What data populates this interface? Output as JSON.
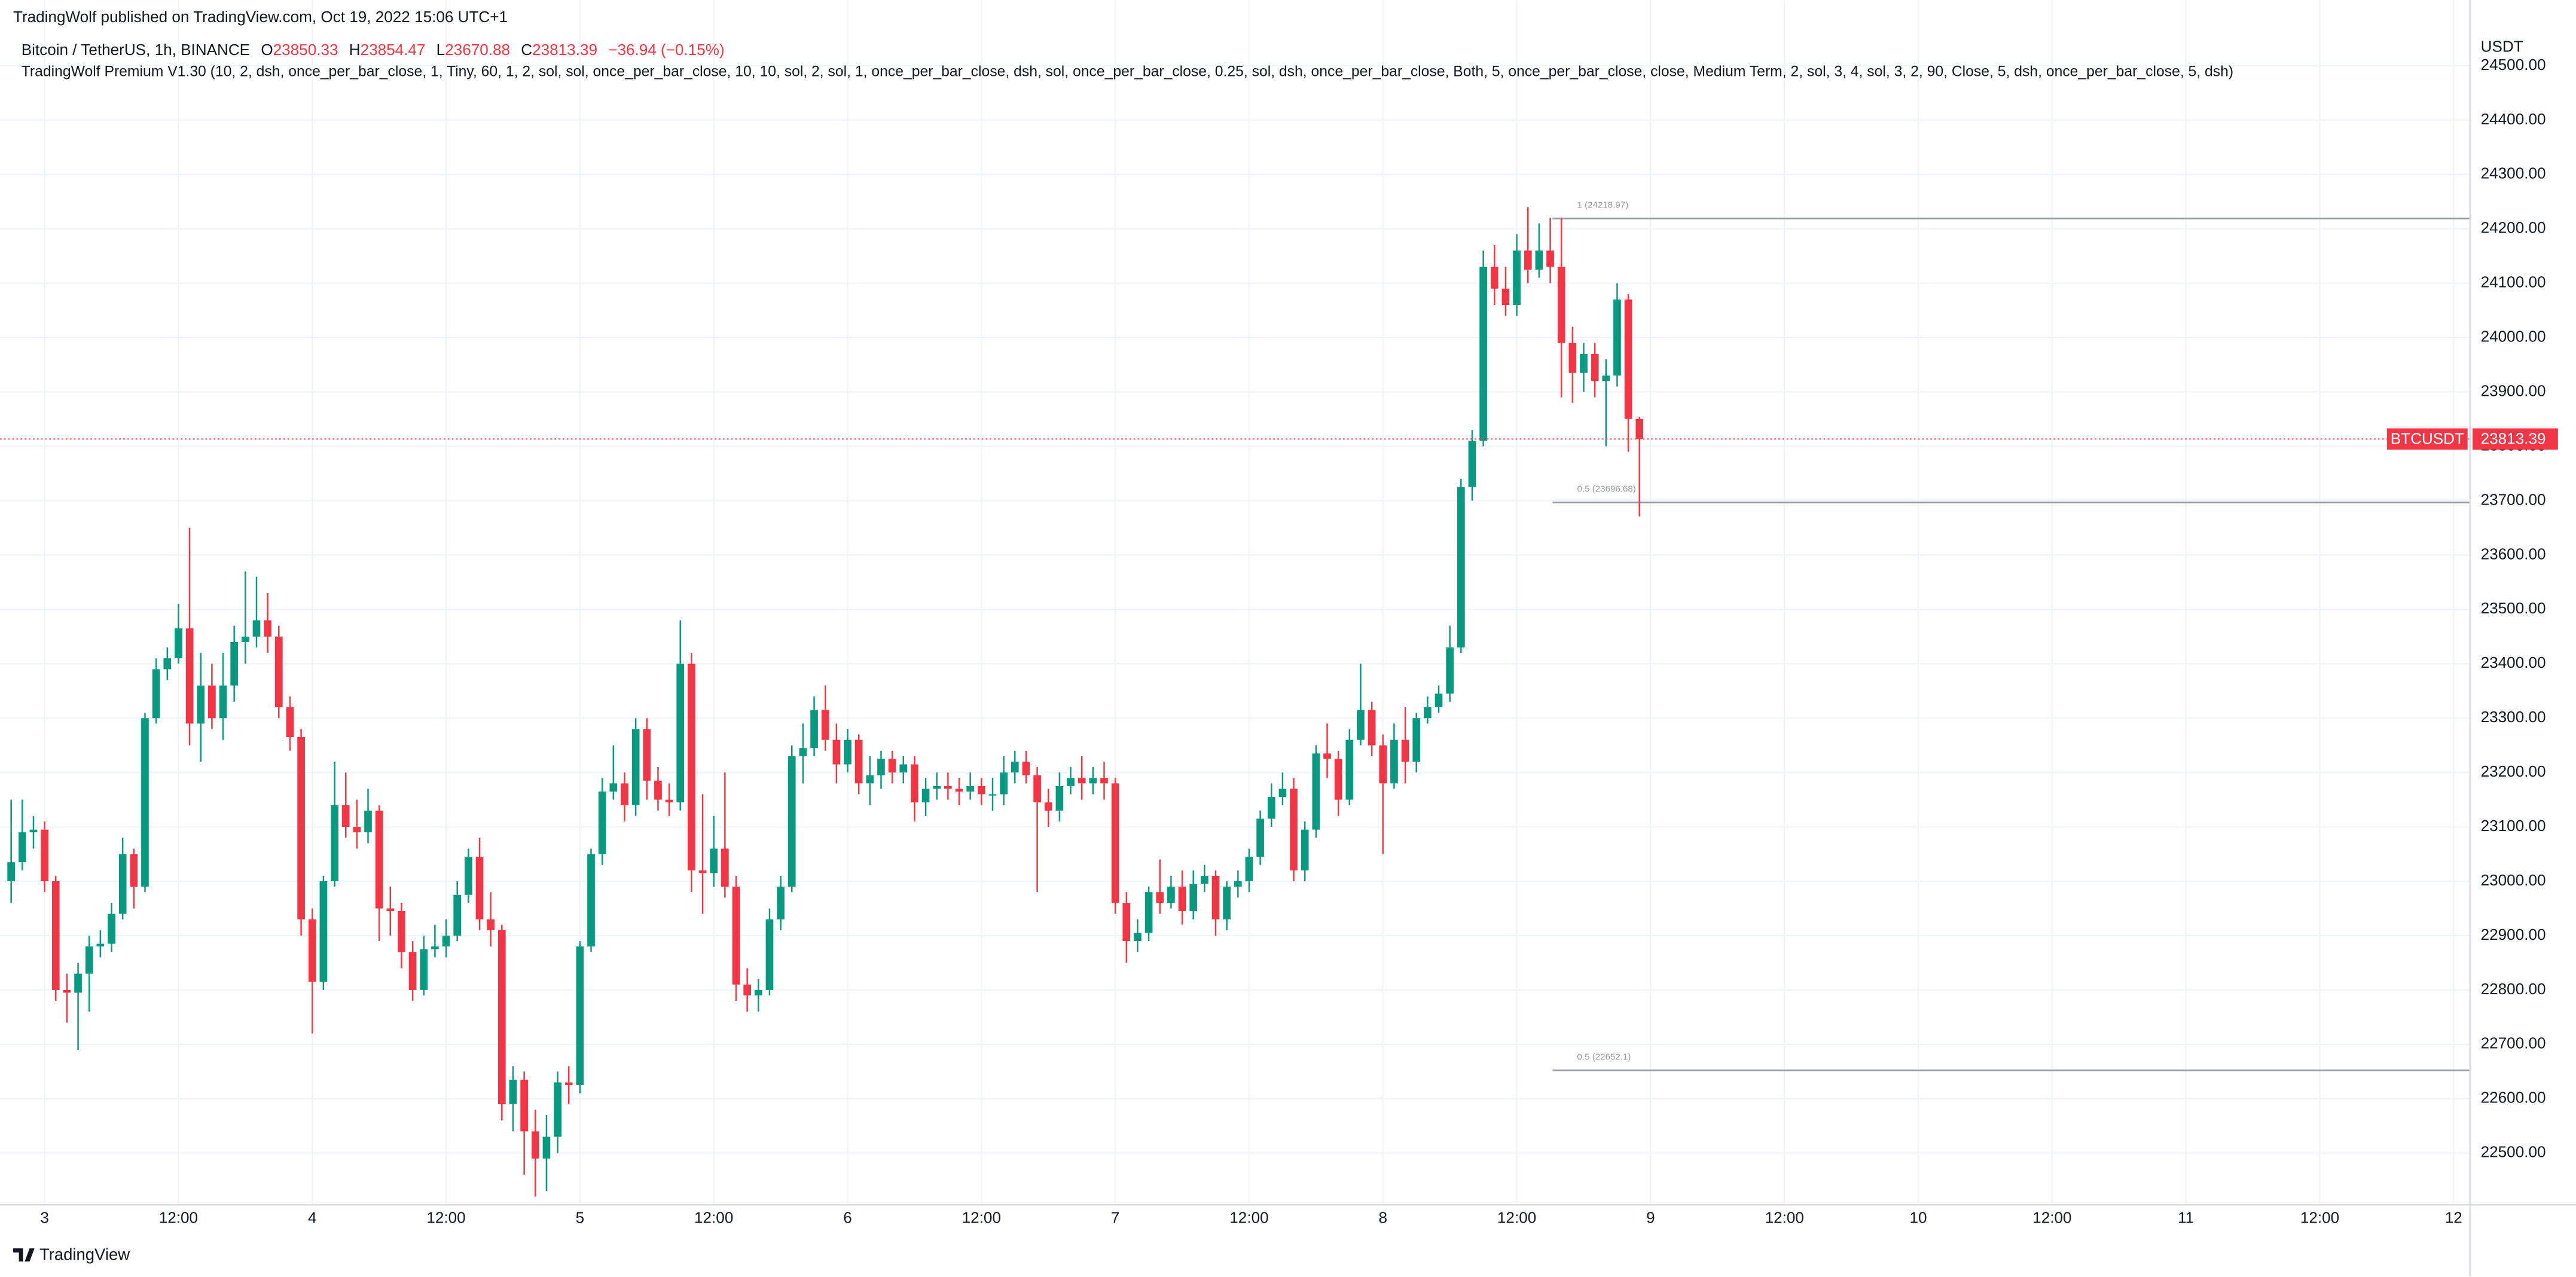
{
  "header": {
    "published": "TradingWolf published on TradingView.com, Oct 19, 2022 15:06 UTC+1",
    "logo": "TradingView"
  },
  "chart_data": {
    "type": "candlestick",
    "title": "Bitcoin / TetherUS, 1h, BINANCE",
    "ohlc_letters": [
      "O",
      "H",
      "L",
      "C"
    ],
    "change": "−36.94 (−0.15%)",
    "indicator": "TradingWolf Premium V1.30 (10, 2, dsh, once_per_bar_close, 1, Tiny, 60, 1, 2, sol, sol, once_per_bar_close, 10, 10, sol, 2, sol, 1, once_per_bar_close, dsh, sol, once_per_bar_close, 0.25, sol, dsh, once_per_bar_close, Both, 5, once_per_bar_close, close, Medium Term, 2, sol, 3, 4, sol, 3, 2, 90, Close, 5, dsh, once_per_bar_close, 5, dsh)",
    "currency": "USDT",
    "symbol": "BTCUSDT",
    "up_color": "#089981",
    "down_color": "#f23645",
    "grid": true,
    "x": [
      -3,
      -2,
      -1,
      0,
      1,
      2,
      3,
      4,
      5,
      6,
      7,
      8,
      9,
      10,
      11,
      12,
      13,
      14,
      15,
      16,
      17,
      18,
      19,
      20,
      21,
      22,
      23,
      24,
      25,
      26,
      27,
      28,
      29,
      30,
      31,
      32,
      33,
      34,
      35,
      36,
      37,
      38,
      39,
      40,
      41,
      42,
      43,
      44,
      45,
      46,
      47,
      48,
      49,
      50,
      51,
      52,
      53,
      54,
      55,
      56,
      57,
      58,
      59,
      60,
      61,
      62,
      63,
      64,
      65,
      66,
      67,
      68,
      69,
      70,
      71,
      72,
      73,
      74,
      75,
      76,
      77,
      78,
      79,
      80,
      81,
      82,
      83,
      84,
      85,
      86,
      87,
      88,
      89,
      90,
      91,
      92,
      93,
      94,
      95,
      96,
      97,
      98,
      99,
      100,
      101,
      102,
      103,
      104,
      105,
      106,
      107,
      108,
      109,
      110,
      111,
      112,
      113,
      114,
      115,
      116,
      117,
      118,
      119,
      120,
      121,
      122,
      123,
      124,
      125,
      126,
      127,
      128,
      129,
      130,
      131,
      132,
      133,
      134,
      135,
      136,
      137,
      138,
      139,
      140,
      141,
      142,
      143
    ],
    "open": [
      23000,
      23035,
      23090,
      23095,
      23000,
      22800,
      22795,
      22830,
      22880,
      22885,
      22940,
      23050,
      22990,
      23300,
      23390,
      23410,
      23465,
      23290,
      23360,
      23300,
      23360,
      23440,
      23450,
      23480,
      23450,
      23320,
      23265,
      22930,
      22815,
      23000,
      23140,
      23100,
      23090,
      23130,
      22950,
      22945,
      22870,
      22800,
      22875,
      22880,
      22900,
      22975,
      23045,
      22930,
      22910,
      22590,
      22635,
      22540,
      22490,
      22530,
      22630,
      22625,
      22880,
      23050,
      23165,
      23180,
      23140,
      23280,
      23185,
      23150,
      23145,
      23400,
      23020,
      23015,
      23060,
      22990,
      22810,
      22790,
      22800,
      22930,
      22990,
      23230,
      23245,
      23315,
      23260,
      23215,
      23260,
      23180,
      23195,
      23225,
      23200,
      23215,
      23145,
      23170,
      23175,
      23170,
      23165,
      23175,
      23160,
      23160,
      23200,
      23220,
      23195,
      23145,
      23130,
      23175,
      23190,
      23180,
      23190,
      23180,
      22960,
      22890,
      22905,
      22980,
      22960,
      22990,
      22945,
      22995,
      23010,
      22930,
      22990,
      23000,
      23045,
      23115,
      23155,
      23170,
      23020,
      23095,
      23235,
      23225,
      23150,
      23260,
      23315,
      23250,
      23180,
      23260,
      23220,
      23300,
      23320,
      23345,
      23430,
      23725,
      23810,
      24130,
      24090,
      24060,
      24160,
      24125,
      24160,
      24130,
      23990,
      23935,
      23970,
      23920,
      23930,
      24070,
      23850.33
    ],
    "high": [
      23150,
      23150,
      23120,
      23110,
      23010,
      22830,
      22850,
      22900,
      22910,
      22960,
      23080,
      23060,
      23310,
      23410,
      23430,
      23510,
      23650,
      23420,
      23400,
      23420,
      23470,
      23570,
      23560,
      23530,
      23470,
      23340,
      23280,
      22950,
      23010,
      23220,
      23200,
      23150,
      23170,
      23140,
      22990,
      22960,
      22890,
      22900,
      22920,
      22930,
      23000,
      23060,
      23080,
      22980,
      22920,
      22660,
      22650,
      22580,
      22570,
      22650,
      22660,
      22890,
      23060,
      23190,
      23250,
      23200,
      23300,
      23300,
      23210,
      23180,
      23480,
      23420,
      23160,
      23120,
      23200,
      23010,
      22840,
      22820,
      22950,
      23010,
      23250,
      23290,
      23340,
      23360,
      23290,
      23280,
      23270,
      23230,
      23240,
      23240,
      23230,
      23230,
      23190,
      23200,
      23200,
      23190,
      23200,
      23190,
      23190,
      23230,
      23240,
      23240,
      23210,
      23170,
      23200,
      23210,
      23230,
      23210,
      23220,
      23190,
      22980,
      22930,
      22990,
      23040,
      23010,
      23020,
      23020,
      23030,
      23020,
      23000,
      23020,
      23060,
      23130,
      23180,
      23200,
      23190,
      23110,
      23250,
      23290,
      23240,
      23280,
      23400,
      23330,
      23270,
      23290,
      23320,
      23310,
      23340,
      23360,
      23470,
      23740,
      23830,
      24160,
      24170,
      24130,
      24190,
      24240,
      24210,
      24220,
      24220,
      24020,
      23990,
      23990,
      23960,
      24100,
      24080,
      23854.47
    ],
    "low": [
      22960,
      23020,
      23060,
      22980,
      22780,
      22740,
      22690,
      22760,
      22860,
      22870,
      22930,
      22950,
      22980,
      23290,
      23370,
      23400,
      23250,
      23220,
      23280,
      23260,
      23330,
      23400,
      23430,
      23420,
      23300,
      23240,
      22900,
      22720,
      22800,
      22990,
      23080,
      23060,
      23070,
      22890,
      22900,
      22840,
      22780,
      22790,
      22860,
      22860,
      22890,
      22960,
      22910,
      22880,
      22560,
      22540,
      22460,
      22420,
      22430,
      22500,
      22590,
      22610,
      22870,
      23030,
      23150,
      23110,
      23120,
      23150,
      23130,
      23120,
      23130,
      22980,
      22940,
      22990,
      22970,
      22780,
      22760,
      22760,
      22790,
      22910,
      22980,
      23180,
      23230,
      23240,
      23180,
      23200,
      23160,
      23140,
      23170,
      23180,
      23180,
      23110,
      23120,
      23150,
      23150,
      23140,
      23150,
      23140,
      23130,
      23140,
      23180,
      23180,
      22980,
      23100,
      23110,
      23160,
      23150,
      23160,
      23150,
      22940,
      22850,
      22870,
      22890,
      22940,
      22950,
      22920,
      22930,
      22980,
      22900,
      22910,
      22970,
      22980,
      23030,
      23100,
      23140,
      23000,
      23000,
      23080,
      23190,
      23120,
      23140,
      23250,
      23230,
      23050,
      23170,
      23180,
      23200,
      23290,
      23310,
      23330,
      23420,
      23700,
      23800,
      24060,
      24040,
      24040,
      24100,
      24110,
      24100,
      23890,
      23880,
      23900,
      23890,
      23800,
      23910,
      23790,
      23670.88
    ],
    "close": [
      23035,
      23090,
      23095,
      23000,
      22800,
      22795,
      22830,
      22880,
      22885,
      22940,
      23050,
      22990,
      23300,
      23390,
      23410,
      23465,
      23290,
      23360,
      23300,
      23360,
      23440,
      23450,
      23480,
      23450,
      23320,
      23265,
      22930,
      22815,
      23000,
      23140,
      23100,
      23090,
      23130,
      22950,
      22945,
      22870,
      22800,
      22875,
      22880,
      22900,
      22975,
      23045,
      22930,
      22910,
      22590,
      22635,
      22540,
      22490,
      22530,
      22630,
      22625,
      22880,
      23050,
      23165,
      23180,
      23140,
      23280,
      23185,
      23150,
      23145,
      23400,
      23020,
      23015,
      23060,
      22990,
      22810,
      22790,
      22800,
      22930,
      22990,
      23230,
      23245,
      23315,
      23260,
      23215,
      23260,
      23180,
      23195,
      23225,
      23200,
      23215,
      23145,
      23170,
      23175,
      23170,
      23165,
      23175,
      23160,
      23160,
      23200,
      23220,
      23195,
      23145,
      23130,
      23175,
      23190,
      23180,
      23190,
      23180,
      22960,
      22890,
      22905,
      22980,
      22960,
      22990,
      22945,
      22995,
      23010,
      22930,
      22990,
      23000,
      23045,
      23115,
      23155,
      23170,
      23020,
      23095,
      23235,
      23225,
      23150,
      23260,
      23315,
      23250,
      23180,
      23260,
      23220,
      23300,
      23320,
      23345,
      23430,
      23725,
      23810,
      24130,
      24090,
      24060,
      24160,
      24125,
      24160,
      24130,
      23990,
      23935,
      23970,
      23920,
      23930,
      24070,
      23850.33,
      23813.39
    ],
    "levels": [
      {
        "label": "1 (24218.97)",
        "value": 24218.97
      },
      {
        "label": "0.5 (23696.68)",
        "value": 23696.68
      },
      {
        "label": "0.5 (22652.1)",
        "value": 22652.1
      }
    ],
    "xlim": [
      -4,
      217.4
    ],
    "xticks": [
      {
        "value": 0,
        "label": "3"
      },
      {
        "value": 12,
        "label": "12:00"
      },
      {
        "value": 24,
        "label": "4"
      },
      {
        "value": 36,
        "label": "12:00"
      },
      {
        "value": 48,
        "label": "5"
      },
      {
        "value": 60,
        "label": "12:00"
      },
      {
        "value": 72,
        "label": "6"
      },
      {
        "value": 84,
        "label": "12:00"
      },
      {
        "value": 96,
        "label": "7"
      },
      {
        "value": 108,
        "label": "12:00"
      },
      {
        "value": 120,
        "label": "8"
      },
      {
        "value": 132,
        "label": "12:00"
      },
      {
        "value": 144,
        "label": "9"
      },
      {
        "value": 156,
        "label": "12:00"
      },
      {
        "value": 168,
        "label": "10"
      },
      {
        "value": 180,
        "label": "12:00"
      },
      {
        "value": 192,
        "label": "11"
      },
      {
        "value": 204,
        "label": "12:00"
      },
      {
        "value": 216,
        "label": "12"
      }
    ],
    "ylim": [
      22406.3,
      24620.8
    ],
    "yticks": [
      {
        "value": 22500,
        "label": "22500.00"
      },
      {
        "value": 22600,
        "label": "22600.00"
      },
      {
        "value": 22700,
        "label": "22700.00"
      },
      {
        "value": 22800,
        "label": "22800.00"
      },
      {
        "value": 22900,
        "label": "22900.00"
      },
      {
        "value": 23000,
        "label": "23000.00"
      },
      {
        "value": 23100,
        "label": "23100.00"
      },
      {
        "value": 23200,
        "label": "23200.00"
      },
      {
        "value": 23300,
        "label": "23300.00"
      },
      {
        "value": 23400,
        "label": "23400.00"
      },
      {
        "value": 23500,
        "label": "23500.00"
      },
      {
        "value": 23600,
        "label": "23600.00"
      },
      {
        "value": 23700,
        "label": "23700.00"
      },
      {
        "value": 23800,
        "label": "23800.00"
      },
      {
        "value": 23900,
        "label": "23900.00"
      },
      {
        "value": 24000,
        "label": "24000.00"
      },
      {
        "value": 24100,
        "label": "24100.00"
      },
      {
        "value": 24200,
        "label": "24200.00"
      },
      {
        "value": 24300,
        "label": "24300.00"
      },
      {
        "value": 24400,
        "label": "24400.00"
      },
      {
        "value": 24500,
        "label": "24500.00"
      }
    ]
  }
}
